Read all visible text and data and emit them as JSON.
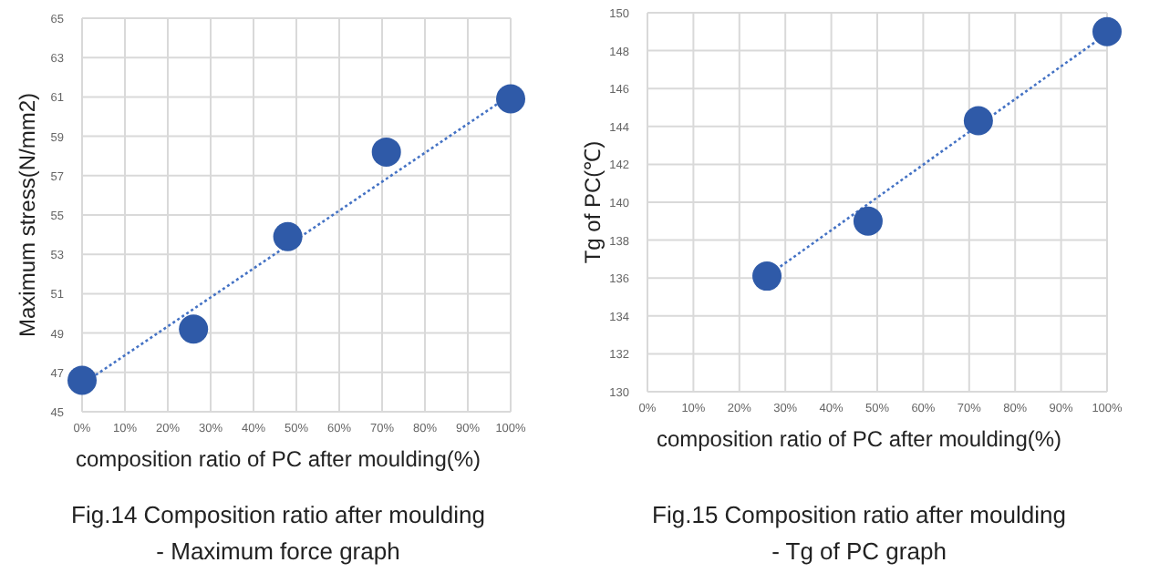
{
  "chart_data": [
    {
      "type": "scatter",
      "title": "Fig.14 Composition ratio after moulding\n- Maximum force graph",
      "xlabel": "composition ratio of PC after moulding(%)",
      "ylabel": "Maximum stress(N/mm2)",
      "xlim": [
        0,
        100
      ],
      "xticks": [
        {
          "value": 0,
          "label": "0%"
        },
        {
          "value": 10,
          "label": "10%"
        },
        {
          "value": 20,
          "label": "20%"
        },
        {
          "value": 30,
          "label": "30%"
        },
        {
          "value": 40,
          "label": "40%"
        },
        {
          "value": 50,
          "label": "50%"
        },
        {
          "value": 60,
          "label": "60%"
        },
        {
          "value": 70,
          "label": "70%"
        },
        {
          "value": 80,
          "label": "80%"
        },
        {
          "value": 90,
          "label": "90%"
        },
        {
          "value": 100,
          "label": "100%"
        }
      ],
      "ylim": [
        45,
        65
      ],
      "yticks": [
        45,
        47,
        49,
        51,
        53,
        55,
        57,
        59,
        61,
        63,
        65
      ],
      "grid": true,
      "series": [
        {
          "type": "line",
          "color": "#4472c4",
          "line_style": "dotted",
          "x": [
            0,
            100
          ],
          "values": [
            46.4,
            61.1
          ]
        },
        {
          "color": "#2f5aa8",
          "marker": "circle",
          "x": [
            0,
            26,
            48,
            71,
            100
          ],
          "values": [
            46.6,
            49.2,
            53.9,
            58.2,
            60.9
          ]
        }
      ]
    },
    {
      "type": "scatter",
      "title": "Fig.15 Composition ratio after moulding\n- Tg of PC graph",
      "xlabel": "composition ratio of PC after moulding(%)",
      "ylabel": "Tg of PC(℃)",
      "xlim": [
        0,
        100
      ],
      "xticks": [
        {
          "value": 0,
          "label": "0%"
        },
        {
          "value": 10,
          "label": "10%"
        },
        {
          "value": 20,
          "label": "20%"
        },
        {
          "value": 30,
          "label": "30%"
        },
        {
          "value": 40,
          "label": "40%"
        },
        {
          "value": 50,
          "label": "50%"
        },
        {
          "value": 60,
          "label": "60%"
        },
        {
          "value": 70,
          "label": "70%"
        },
        {
          "value": 80,
          "label": "80%"
        },
        {
          "value": 90,
          "label": "90%"
        },
        {
          "value": 100,
          "label": "100%"
        }
      ],
      "ylim": [
        130,
        150
      ],
      "yticks": [
        130,
        132,
        134,
        136,
        138,
        140,
        142,
        144,
        146,
        148,
        150
      ],
      "grid": true,
      "series": [
        {
          "type": "line",
          "color": "#4472c4",
          "line_style": "dotted",
          "x": [
            26,
            100
          ],
          "values": [
            136.1,
            148.9
          ]
        },
        {
          "color": "#2f5aa8",
          "marker": "circle",
          "x": [
            26,
            48,
            72,
            100
          ],
          "values": [
            136.1,
            139,
            144.3,
            149
          ]
        }
      ]
    }
  ]
}
